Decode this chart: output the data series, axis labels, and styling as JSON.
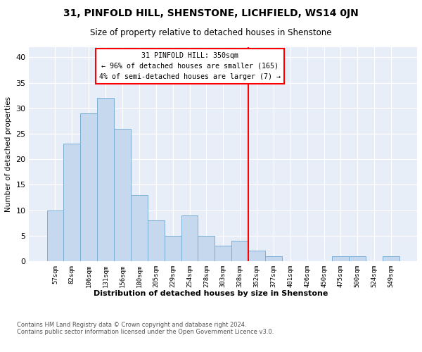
{
  "title": "31, PINFOLD HILL, SHENSTONE, LICHFIELD, WS14 0JN",
  "subtitle": "Size of property relative to detached houses in Shenstone",
  "xlabel": "Distribution of detached houses by size in Shenstone",
  "ylabel": "Number of detached properties",
  "categories": [
    "57sqm",
    "82sqm",
    "106sqm",
    "131sqm",
    "156sqm",
    "180sqm",
    "205sqm",
    "229sqm",
    "254sqm",
    "278sqm",
    "303sqm",
    "328sqm",
    "352sqm",
    "377sqm",
    "401sqm",
    "426sqm",
    "450sqm",
    "475sqm",
    "500sqm",
    "524sqm",
    "549sqm"
  ],
  "values": [
    10,
    23,
    29,
    32,
    26,
    13,
    8,
    5,
    9,
    5,
    3,
    4,
    2,
    1,
    0,
    0,
    0,
    1,
    1,
    0,
    1
  ],
  "bar_color": "#c5d8ed",
  "bar_edge_color": "#7bafd4",
  "highlight_index": 12,
  "annotation_title": "31 PINFOLD HILL: 350sqm",
  "annotation_line1": "← 96% of detached houses are smaller (165)",
  "annotation_line2": "4% of semi-detached houses are larger (7) →",
  "ylim": [
    0,
    42
  ],
  "yticks": [
    0,
    5,
    10,
    15,
    20,
    25,
    30,
    35,
    40
  ],
  "bg_color": "#e8eef8",
  "footnote1": "Contains HM Land Registry data © Crown copyright and database right 2024.",
  "footnote2": "Contains public sector information licensed under the Open Government Licence v3.0."
}
